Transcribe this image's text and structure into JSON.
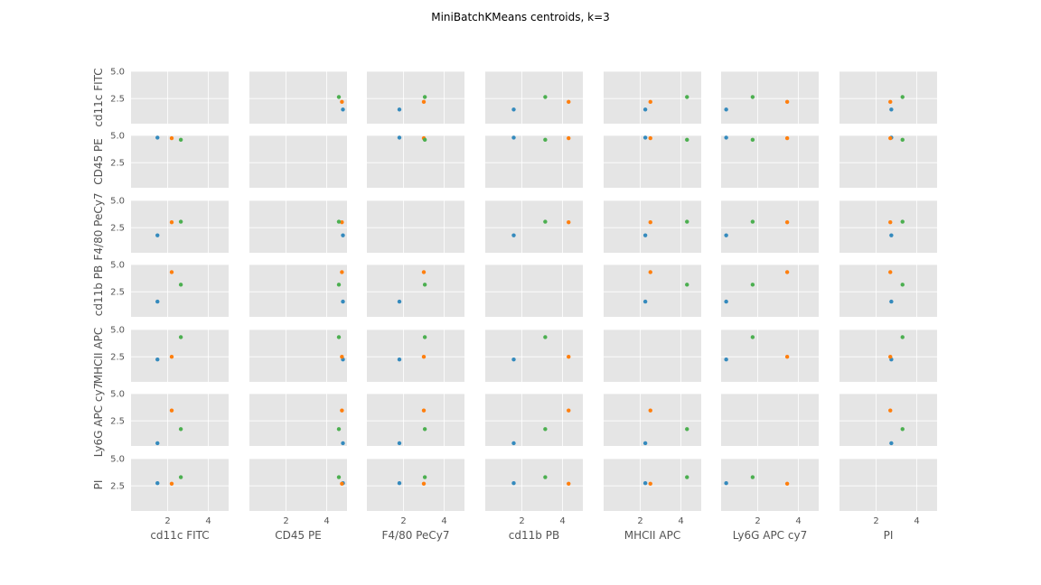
{
  "chart_data": {
    "type": "scatter",
    "title": "MiniBatchKMeans centroids, k=3",
    "variables": [
      "cd11c FITC",
      "CD45 PE",
      "F4/80 PeCy7",
      "cd11b PB",
      "MHCII APC",
      "Ly6G APC cy7",
      "PI"
    ],
    "lim": [
      0.2,
      5.0
    ],
    "ticks": {
      "y": [
        2.5,
        5.0
      ],
      "y_labels": [
        "2.5",
        "5.0"
      ],
      "x": [
        2,
        4
      ],
      "x_labels": [
        "2",
        "4"
      ]
    },
    "grid": true,
    "legend": "none",
    "series": [
      {
        "color": "#348ABD",
        "values": [
          1.5,
          4.8,
          1.8,
          1.6,
          2.25,
          0.45,
          2.75
        ]
      },
      {
        "color": "#FF7F0E",
        "values": [
          2.2,
          4.75,
          3.0,
          4.3,
          2.5,
          3.45,
          2.7
        ]
      },
      {
        "color": "#4CAF50",
        "values": [
          2.65,
          4.6,
          3.05,
          3.15,
          4.3,
          1.75,
          3.3
        ]
      }
    ]
  }
}
